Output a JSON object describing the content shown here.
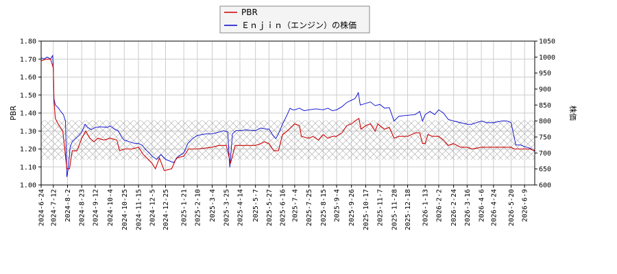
{
  "chart_data": {
    "type": "line",
    "title": "",
    "xlabel": "",
    "ylabel_left": "PBR",
    "ylabel_right": "株価",
    "legend_position": "top-center",
    "grid": true,
    "shaded_band": [
      1.14,
      1.36
    ],
    "ylim_left": [
      1.0,
      1.8
    ],
    "yticks_left": [
      "1.00",
      "1.10",
      "1.20",
      "1.30",
      "1.40",
      "1.50",
      "1.60",
      "1.70",
      "1.80"
    ],
    "ylim_right": [
      600,
      1050
    ],
    "yticks_right": [
      "600",
      "650",
      "700",
      "750",
      "800",
      "850",
      "900",
      "950",
      "1000",
      "1050"
    ],
    "xlim": [
      "2024-06-24",
      "2026-06-24"
    ],
    "xticks": [
      "2024-6-24",
      "2024-7-12",
      "2024-8-2",
      "2024-8-23",
      "2024-9-12",
      "2024-10-4",
      "2024-10-25",
      "2024-11-15",
      "2024-12-5",
      "2024-12-25",
      "2025-1-21",
      "2025-2-10",
      "2025-3-4",
      "2025-3-25",
      "2025-4-14",
      "2025-5-7",
      "2025-5-27",
      "2025-6-16",
      "2025-7-4",
      "2025-7-25",
      "2025-8-15",
      "2025-9-4",
      "2025-9-26",
      "2025-10-17",
      "2025-11-7",
      "2025-11-28",
      "2025-12-18",
      "2026-1-13",
      "2026-2-2",
      "2026-2-24",
      "2026-3-16",
      "2026-4-6",
      "2026-4-24",
      "2026-5-20",
      "2026-6-9"
    ],
    "colors": {
      "pbr": "#cc0000",
      "price": "#0000cc"
    },
    "series": [
      {
        "name": "PBR",
        "axis": "left",
        "points": [
          [
            "2024-06-24",
            1.69
          ],
          [
            "2024-07-01",
            1.7
          ],
          [
            "2024-07-08",
            1.7
          ],
          [
            "2024-07-12",
            1.65
          ],
          [
            "2024-07-13",
            1.47
          ],
          [
            "2024-07-15",
            1.37
          ],
          [
            "2024-07-19",
            1.34
          ],
          [
            "2024-07-26",
            1.3
          ],
          [
            "2024-08-01",
            1.09
          ],
          [
            "2024-08-05",
            1.09
          ],
          [
            "2024-08-09",
            1.19
          ],
          [
            "2024-08-16",
            1.19
          ],
          [
            "2024-08-23",
            1.26
          ],
          [
            "2024-08-29",
            1.3
          ],
          [
            "2024-09-04",
            1.26
          ],
          [
            "2024-09-10",
            1.24
          ],
          [
            "2024-09-16",
            1.26
          ],
          [
            "2024-09-25",
            1.25
          ],
          [
            "2024-10-04",
            1.26
          ],
          [
            "2024-10-14",
            1.25
          ],
          [
            "2024-10-18",
            1.19
          ],
          [
            "2024-10-25",
            1.2
          ],
          [
            "2024-11-05",
            1.2
          ],
          [
            "2024-11-15",
            1.21
          ],
          [
            "2024-11-22",
            1.17
          ],
          [
            "2024-11-30",
            1.14
          ],
          [
            "2024-12-05",
            1.12
          ],
          [
            "2024-12-10",
            1.09
          ],
          [
            "2024-12-16",
            1.15
          ],
          [
            "2024-12-23",
            1.08
          ],
          [
            "2025-01-03",
            1.09
          ],
          [
            "2025-01-10",
            1.15
          ],
          [
            "2025-01-21",
            1.16
          ],
          [
            "2025-01-28",
            1.2
          ],
          [
            "2025-02-10",
            1.2
          ],
          [
            "2025-03-04",
            1.21
          ],
          [
            "2025-03-14",
            1.22
          ],
          [
            "2025-03-25",
            1.22
          ],
          [
            "2025-03-31",
            1.12
          ],
          [
            "2025-04-07",
            1.22
          ],
          [
            "2025-04-14",
            1.22
          ],
          [
            "2025-04-25",
            1.22
          ],
          [
            "2025-05-07",
            1.22
          ],
          [
            "2025-05-15",
            1.23
          ],
          [
            "2025-05-20",
            1.24
          ],
          [
            "2025-05-27",
            1.23
          ],
          [
            "2025-06-03",
            1.19
          ],
          [
            "2025-06-10",
            1.19
          ],
          [
            "2025-06-16",
            1.28
          ],
          [
            "2025-06-23",
            1.3
          ],
          [
            "2025-07-04",
            1.34
          ],
          [
            "2025-07-11",
            1.33
          ],
          [
            "2025-07-14",
            1.27
          ],
          [
            "2025-07-25",
            1.26
          ],
          [
            "2025-07-31",
            1.27
          ],
          [
            "2025-08-08",
            1.25
          ],
          [
            "2025-08-15",
            1.28
          ],
          [
            "2025-08-22",
            1.26
          ],
          [
            "2025-08-29",
            1.27
          ],
          [
            "2025-09-04",
            1.27
          ],
          [
            "2025-09-12",
            1.29
          ],
          [
            "2025-09-19",
            1.33
          ],
          [
            "2025-09-26",
            1.34
          ],
          [
            "2025-10-03",
            1.36
          ],
          [
            "2025-10-07",
            1.37
          ],
          [
            "2025-10-10",
            1.31
          ],
          [
            "2025-10-17",
            1.33
          ],
          [
            "2025-10-24",
            1.34
          ],
          [
            "2025-10-31",
            1.3
          ],
          [
            "2025-11-04",
            1.34
          ],
          [
            "2025-11-07",
            1.33
          ],
          [
            "2025-11-14",
            1.31
          ],
          [
            "2025-11-21",
            1.32
          ],
          [
            "2025-11-28",
            1.26
          ],
          [
            "2025-12-05",
            1.27
          ],
          [
            "2025-12-18",
            1.27
          ],
          [
            "2025-12-29",
            1.29
          ],
          [
            "2026-01-05",
            1.29
          ],
          [
            "2026-01-09",
            1.23
          ],
          [
            "2026-01-13",
            1.23
          ],
          [
            "2026-01-17",
            1.28
          ],
          [
            "2026-01-24",
            1.27
          ],
          [
            "2026-02-02",
            1.27
          ],
          [
            "2026-02-09",
            1.25
          ],
          [
            "2026-02-16",
            1.22
          ],
          [
            "2026-02-24",
            1.23
          ],
          [
            "2026-03-06",
            1.21
          ],
          [
            "2026-03-16",
            1.21
          ],
          [
            "2026-03-23",
            1.2
          ],
          [
            "2026-04-06",
            1.21
          ],
          [
            "2026-04-24",
            1.21
          ],
          [
            "2026-05-06",
            1.21
          ],
          [
            "2026-05-20",
            1.21
          ],
          [
            "2026-05-25",
            1.2
          ],
          [
            "2026-06-09",
            1.2
          ],
          [
            "2026-06-17",
            1.2
          ],
          [
            "2026-06-24",
            1.19
          ]
        ]
      },
      {
        "name": "Ｅｎｊｉｎ（エンジン）の株価",
        "axis": "right",
        "points": [
          [
            "2024-06-24",
            998
          ],
          [
            "2024-06-28",
            994
          ],
          [
            "2024-07-03",
            1000
          ],
          [
            "2024-07-08",
            994
          ],
          [
            "2024-07-11",
            1005
          ],
          [
            "2024-07-12",
            965
          ],
          [
            "2024-07-13",
            870
          ],
          [
            "2024-07-15",
            850
          ],
          [
            "2024-07-19",
            842
          ],
          [
            "2024-07-23",
            830
          ],
          [
            "2024-07-27",
            820
          ],
          [
            "2024-07-30",
            800
          ],
          [
            "2024-08-01",
            625
          ],
          [
            "2024-08-03",
            650
          ],
          [
            "2024-08-06",
            720
          ],
          [
            "2024-08-09",
            735
          ],
          [
            "2024-08-14",
            745
          ],
          [
            "2024-08-19",
            755
          ],
          [
            "2024-08-23",
            765
          ],
          [
            "2024-08-28",
            790
          ],
          [
            "2024-09-01",
            780
          ],
          [
            "2024-09-06",
            773
          ],
          [
            "2024-09-12",
            780
          ],
          [
            "2024-09-20",
            782
          ],
          [
            "2024-09-30",
            780
          ],
          [
            "2024-10-04",
            785
          ],
          [
            "2024-10-10",
            775
          ],
          [
            "2024-10-16",
            770
          ],
          [
            "2024-10-21",
            750
          ],
          [
            "2024-10-25",
            740
          ],
          [
            "2024-11-02",
            735
          ],
          [
            "2024-11-09",
            730
          ],
          [
            "2024-11-15",
            730
          ],
          [
            "2024-11-20",
            725
          ],
          [
            "2024-11-26",
            710
          ],
          [
            "2024-12-01",
            700
          ],
          [
            "2024-12-05",
            690
          ],
          [
            "2024-12-12",
            680
          ],
          [
            "2024-12-18",
            695
          ],
          [
            "2024-12-25",
            680
          ],
          [
            "2025-01-06",
            670
          ],
          [
            "2025-01-13",
            690
          ],
          [
            "2025-01-21",
            700
          ],
          [
            "2025-01-27",
            730
          ],
          [
            "2025-02-03",
            745
          ],
          [
            "2025-02-10",
            755
          ],
          [
            "2025-02-24",
            760
          ],
          [
            "2025-03-04",
            760
          ],
          [
            "2025-03-14",
            765
          ],
          [
            "2025-03-21",
            770
          ],
          [
            "2025-03-27",
            765
          ],
          [
            "2025-03-30",
            655
          ],
          [
            "2025-04-03",
            760
          ],
          [
            "2025-04-08",
            770
          ],
          [
            "2025-04-14",
            770
          ],
          [
            "2025-04-22",
            772
          ],
          [
            "2025-05-07",
            770
          ],
          [
            "2025-05-15",
            778
          ],
          [
            "2025-05-22",
            775
          ],
          [
            "2025-05-27",
            775
          ],
          [
            "2025-06-02",
            755
          ],
          [
            "2025-06-06",
            745
          ],
          [
            "2025-06-10",
            760
          ],
          [
            "2025-06-16",
            790
          ],
          [
            "2025-06-23",
            820
          ],
          [
            "2025-06-27",
            840
          ],
          [
            "2025-07-01",
            835
          ],
          [
            "2025-07-04",
            835
          ],
          [
            "2025-07-11",
            840
          ],
          [
            "2025-07-18",
            832
          ],
          [
            "2025-07-25",
            835
          ],
          [
            "2025-08-04",
            838
          ],
          [
            "2025-08-15",
            835
          ],
          [
            "2025-08-22",
            840
          ],
          [
            "2025-08-29",
            832
          ],
          [
            "2025-09-04",
            835
          ],
          [
            "2025-09-12",
            845
          ],
          [
            "2025-09-19",
            858
          ],
          [
            "2025-09-26",
            865
          ],
          [
            "2025-10-01",
            870
          ],
          [
            "2025-10-05",
            883
          ],
          [
            "2025-10-06",
            890
          ],
          [
            "2025-10-09",
            850
          ],
          [
            "2025-10-17",
            855
          ],
          [
            "2025-10-24",
            860
          ],
          [
            "2025-10-31",
            848
          ],
          [
            "2025-11-07",
            852
          ],
          [
            "2025-11-14",
            840
          ],
          [
            "2025-11-21",
            842
          ],
          [
            "2025-11-28",
            800
          ],
          [
            "2025-12-05",
            815
          ],
          [
            "2025-12-18",
            818
          ],
          [
            "2025-12-29",
            820
          ],
          [
            "2026-01-05",
            830
          ],
          [
            "2026-01-09",
            800
          ],
          [
            "2026-01-13",
            820
          ],
          [
            "2026-01-20",
            830
          ],
          [
            "2026-01-27",
            820
          ],
          [
            "2026-02-02",
            835
          ],
          [
            "2026-02-09",
            825
          ],
          [
            "2026-02-16",
            805
          ],
          [
            "2026-02-24",
            800
          ],
          [
            "2026-03-06",
            795
          ],
          [
            "2026-03-16",
            790
          ],
          [
            "2026-03-23",
            790
          ],
          [
            "2026-04-06",
            800
          ],
          [
            "2026-04-14",
            795
          ],
          [
            "2026-04-24",
            795
          ],
          [
            "2026-05-06",
            800
          ],
          [
            "2026-05-14",
            800
          ],
          [
            "2026-05-20",
            795
          ],
          [
            "2026-05-27",
            725
          ],
          [
            "2026-06-03",
            725
          ],
          [
            "2026-06-09",
            720
          ],
          [
            "2026-06-17",
            715
          ],
          [
            "2026-06-24",
            705
          ]
        ]
      }
    ]
  }
}
